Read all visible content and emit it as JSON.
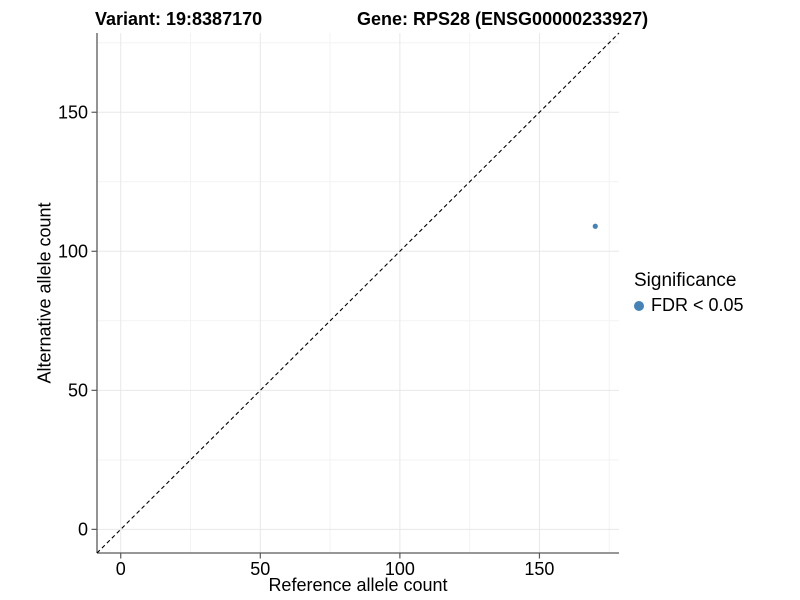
{
  "title": {
    "left": "Variant: 19:8387170",
    "right": "Gene: RPS28 (ENSG00000233927)"
  },
  "axes": {
    "x_label": "Reference allele count",
    "y_label": "Alternative allele count"
  },
  "legend": {
    "title": "Significance",
    "items": [
      {
        "label": "FDR < 0.05",
        "color": "#4682B4"
      }
    ]
  },
  "chart_data": {
    "type": "scatter",
    "title": "Variant: 19:8387170    Gene: RPS28 (ENSG00000233927)",
    "xlabel": "Reference allele count",
    "ylabel": "Alternative allele count",
    "xlim": [
      -8.5,
      178.5
    ],
    "ylim": [
      -8.5,
      178.5
    ],
    "x_ticks": [
      0,
      50,
      100,
      150
    ],
    "y_ticks": [
      0,
      50,
      100,
      150
    ],
    "x_minor_ticks": [
      25,
      75,
      125,
      175
    ],
    "y_minor_ticks": [
      25,
      75,
      125,
      175
    ],
    "grid": true,
    "legend_position": "right",
    "series": [
      {
        "name": "FDR < 0.05",
        "color": "#4682B4",
        "points": [
          {
            "x": 170,
            "y": 109
          }
        ]
      }
    ],
    "reference_line": {
      "type": "identity",
      "slope": 1,
      "intercept": 0,
      "style": "dashed",
      "color": "#000000"
    },
    "style": {
      "axis_line_color": "#595959",
      "tick_color": "#595959",
      "grid_major_color": "#e8e8e8",
      "grid_minor_color": "#f3f3f3",
      "point_radius": 2.6
    }
  }
}
